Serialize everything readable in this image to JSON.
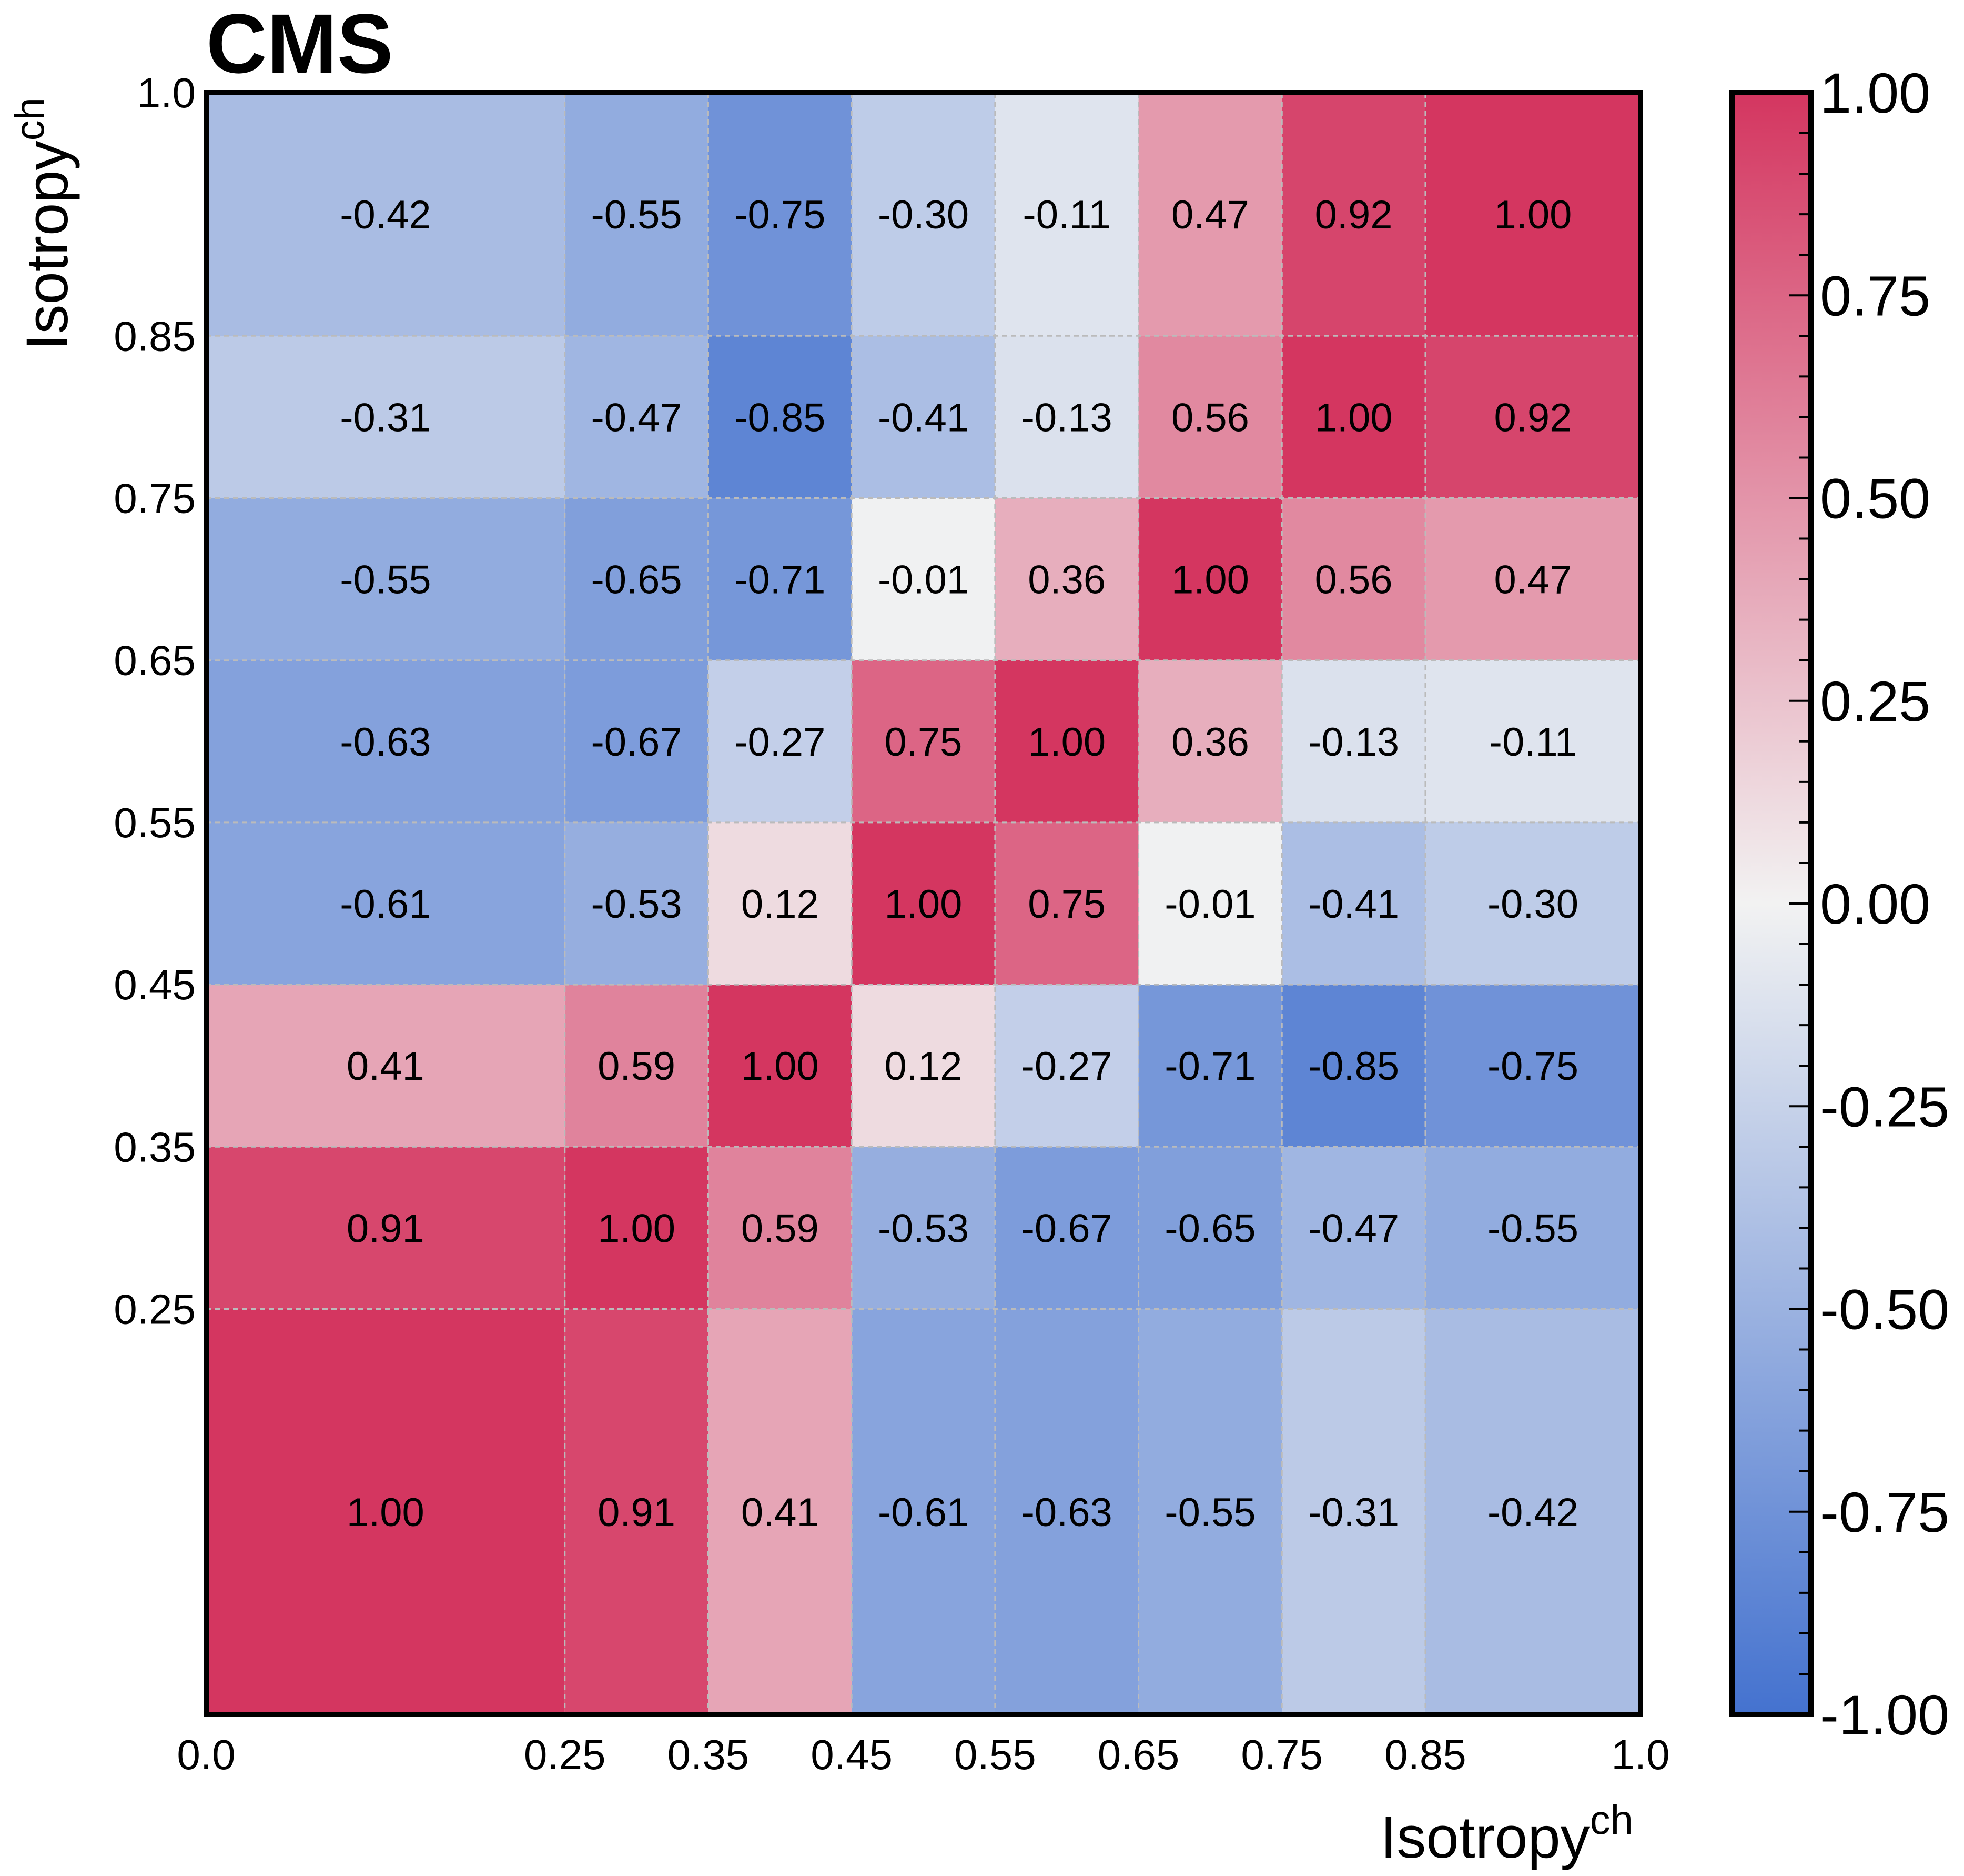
{
  "experiment_label": "CMS",
  "chart_data": {
    "type": "heatmap",
    "title": "CMS",
    "xlabel": "Isotropy",
    "xlabel_sup": "ch",
    "ylabel": "Isotropy",
    "ylabel_sup": "ch",
    "bin_edges": [
      0.0,
      0.25,
      0.35,
      0.45,
      0.55,
      0.65,
      0.75,
      0.85,
      1.0
    ],
    "x_tick_labels": [
      "0.0",
      "0.25",
      "0.35",
      "0.45",
      "0.55",
      "0.65",
      "0.75",
      "0.85",
      "1.0"
    ],
    "y_tick_labels": [
      "0.25",
      "0.35",
      "0.45",
      "0.55",
      "0.65",
      "0.75",
      "0.85",
      "1.0"
    ],
    "zlim": [
      -1.0,
      1.0
    ],
    "colorbar_ticks": [
      1.0,
      0.75,
      0.5,
      0.25,
      0.0,
      -0.25,
      -0.5,
      -0.75,
      -1.0
    ],
    "colorbar_tick_labels": [
      "1.00",
      "0.75",
      "0.50",
      "0.25",
      "0.00",
      "-0.25",
      "-0.50",
      "-0.75",
      "-1.00"
    ],
    "colormap": {
      "negative": "#4472CF",
      "zero": "#F2F2F2",
      "positive": "#D43660"
    },
    "values": [
      [
        1.0,
        0.91,
        0.41,
        -0.61,
        -0.63,
        -0.55,
        -0.31,
        -0.42
      ],
      [
        0.91,
        1.0,
        0.59,
        -0.53,
        -0.67,
        -0.65,
        -0.47,
        -0.55
      ],
      [
        0.41,
        0.59,
        1.0,
        0.12,
        -0.27,
        -0.71,
        -0.85,
        -0.75
      ],
      [
        -0.61,
        -0.53,
        0.12,
        1.0,
        0.75,
        -0.01,
        -0.41,
        -0.3
      ],
      [
        -0.63,
        -0.67,
        -0.27,
        0.75,
        1.0,
        0.36,
        -0.13,
        -0.11
      ],
      [
        -0.55,
        -0.65,
        -0.71,
        -0.01,
        0.36,
        1.0,
        0.56,
        0.47
      ],
      [
        -0.31,
        -0.47,
        -0.85,
        -0.41,
        -0.13,
        0.56,
        1.0,
        0.92
      ],
      [
        -0.42,
        -0.55,
        -0.75,
        -0.3,
        -0.11,
        0.47,
        0.92,
        1.0
      ]
    ],
    "value_labels": [
      [
        "1.00",
        "0.91",
        "0.41",
        "-0.61",
        "-0.63",
        "-0.55",
        "-0.31",
        "-0.42"
      ],
      [
        "0.91",
        "1.00",
        "0.59",
        "-0.53",
        "-0.67",
        "-0.65",
        "-0.47",
        "-0.55"
      ],
      [
        "0.41",
        "0.59",
        "1.00",
        "0.12",
        "-0.27",
        "-0.71",
        "-0.85",
        "-0.75"
      ],
      [
        "-0.61",
        "-0.53",
        "0.12",
        "1.00",
        "0.75",
        "-0.01",
        "-0.41",
        "-0.30"
      ],
      [
        "-0.63",
        "-0.67",
        "-0.27",
        "0.75",
        "1.00",
        "0.36",
        "-0.13",
        "-0.11"
      ],
      [
        "-0.55",
        "-0.65",
        "-0.71",
        "-0.01",
        "0.36",
        "1.00",
        "0.56",
        "0.47"
      ],
      [
        "-0.31",
        "-0.47",
        "-0.85",
        "-0.41",
        "-0.13",
        "0.56",
        "1.00",
        "0.92"
      ],
      [
        "-0.42",
        "-0.55",
        "-0.75",
        "-0.30",
        "-0.11",
        "0.47",
        "0.92",
        "1.00"
      ]
    ],
    "grid": true
  }
}
